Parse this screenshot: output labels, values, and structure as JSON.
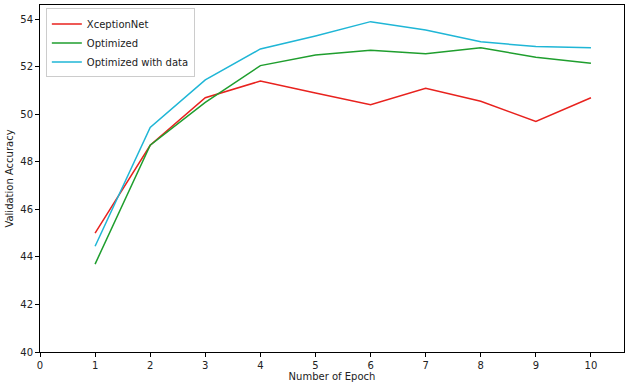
{
  "chart_data": {
    "type": "line",
    "x_label": "Number of Epoch",
    "y_label": "Validation Accuracy",
    "x": [
      1,
      2,
      3,
      4,
      5,
      6,
      7,
      8,
      9,
      10
    ],
    "series": [
      {
        "name": "XceptionNet",
        "color": "#e8221e",
        "values": [
          45.0,
          48.7,
          50.7,
          51.4,
          50.9,
          50.4,
          51.1,
          50.55,
          49.7,
          50.7
        ]
      },
      {
        "name": "Optimized",
        "color": "#1f9e2e",
        "values": [
          43.7,
          48.7,
          50.5,
          52.05,
          52.5,
          52.7,
          52.55,
          52.8,
          52.4,
          52.15
        ]
      },
      {
        "name": "Optimized with data",
        "color": "#1fb6d6",
        "values": [
          44.45,
          49.45,
          51.45,
          52.75,
          53.3,
          53.9,
          53.55,
          53.05,
          52.85,
          52.8
        ]
      }
    ],
    "xlim": [
      0,
      10.6
    ],
    "xticks": [
      0,
      1,
      2,
      3,
      4,
      5,
      6,
      7,
      8,
      9,
      10
    ],
    "ylim": [
      40,
      54.6
    ],
    "yticks": [
      40,
      42,
      44,
      46,
      48,
      50,
      52,
      54
    ],
    "grid": false,
    "legend": "upper left"
  }
}
